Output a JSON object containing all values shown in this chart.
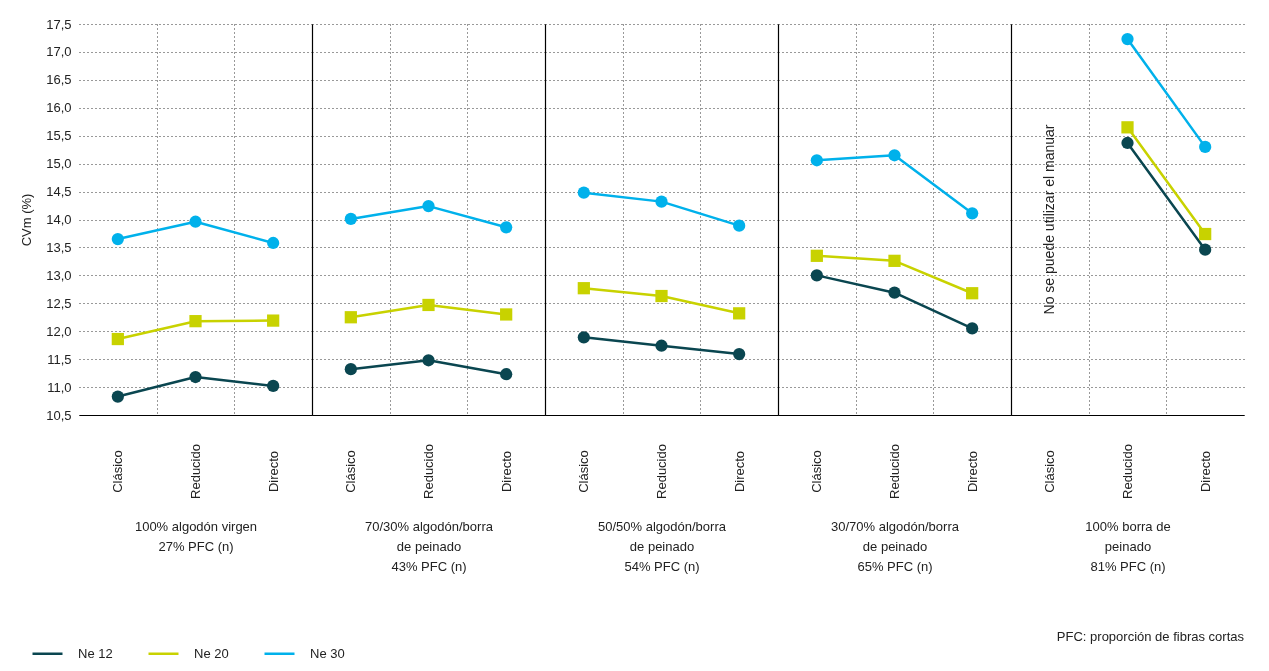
{
  "chart_data": [
    {
      "type": "line",
      "ylabel": "CVm (%)",
      "xlabel": "100% algodón virgen\n27% PFC (n)",
      "categories": [
        "Clásico",
        "Reducido",
        "Directo"
      ],
      "ylim": [
        10.5,
        17.5
      ],
      "yticks": [
        {
          "value": 10.5,
          "label": "10,5"
        },
        {
          "value": 11,
          "label": "11,0"
        },
        {
          "value": 11.5,
          "label": "11,5"
        },
        {
          "value": 12,
          "label": "12,0"
        },
        {
          "value": 12.5,
          "label": "12,5"
        },
        {
          "value": 13,
          "label": "13,0"
        },
        {
          "value": 13.5,
          "label": "13,5"
        },
        {
          "value": 14,
          "label": "14,0"
        },
        {
          "value": 14.5,
          "label": "14,5"
        },
        {
          "value": 15,
          "label": "15,0"
        },
        {
          "value": 15.5,
          "label": "15,5"
        },
        {
          "value": 16,
          "label": "16,0"
        },
        {
          "value": 16.5,
          "label": "16,5"
        },
        {
          "value": 17,
          "label": "17,0"
        },
        {
          "value": 17.5,
          "label": "17,5"
        }
      ],
      "grid": true,
      "legend": "bottom left",
      "series": [
        {
          "name": "Ne 12",
          "color": "#0a4650",
          "marker": "circle",
          "values": [
            10.83,
            11.18,
            11.02
          ]
        },
        {
          "name": "Ne 20",
          "color": "#c8d200",
          "marker": "square",
          "values": [
            11.86,
            12.18,
            12.19
          ]
        },
        {
          "name": "Ne 30",
          "color": "#00b1eb",
          "marker": "circle",
          "values": [
            13.65,
            13.96,
            13.58
          ]
        }
      ]
    },
    {
      "type": "line",
      "xlabel": "70/30% algodón/borra\nde peinado\n43% PFC (n)",
      "categories": [
        "Clásico",
        "Reducido",
        "Directo"
      ],
      "ylim": [
        10.5,
        17.5
      ],
      "tick_labels": "x",
      "grid": true,
      "series": [
        {
          "color": "#0a4650",
          "marker": "circle",
          "values": [
            11.32,
            11.48,
            11.23
          ]
        },
        {
          "color": "#c8d200",
          "marker": "square",
          "values": [
            12.25,
            12.47,
            12.3
          ]
        },
        {
          "color": "#00b1eb",
          "marker": "circle",
          "values": [
            14.01,
            14.24,
            13.86
          ]
        }
      ]
    },
    {
      "type": "line",
      "xlabel": "50/50% algodón/borra\nde peinado\n54% PFC (n)",
      "categories": [
        "Clásico",
        "Reducido",
        "Directo"
      ],
      "ylim": [
        10.5,
        17.5
      ],
      "tick_labels": "x",
      "grid": true,
      "series": [
        {
          "color": "#0a4650",
          "marker": "circle",
          "values": [
            11.89,
            11.74,
            11.59
          ]
        },
        {
          "color": "#c8d200",
          "marker": "square",
          "values": [
            12.77,
            12.63,
            12.32
          ]
        },
        {
          "color": "#00b1eb",
          "marker": "circle",
          "values": [
            14.48,
            14.32,
            13.89
          ]
        }
      ]
    },
    {
      "type": "line",
      "xlabel": "30/70% algodón/borra\nde peinado\n65% PFC (n)",
      "categories": [
        "Clásico",
        "Reducido",
        "Directo"
      ],
      "ylim": [
        10.5,
        17.5
      ],
      "tick_labels": "x",
      "grid": true,
      "series": [
        {
          "color": "#0a4650",
          "marker": "circle",
          "values": [
            13.0,
            12.69,
            12.05
          ]
        },
        {
          "color": "#c8d200",
          "marker": "square",
          "values": [
            13.35,
            13.26,
            12.68
          ]
        },
        {
          "color": "#00b1eb",
          "marker": "circle",
          "values": [
            15.06,
            15.15,
            14.11
          ]
        }
      ]
    },
    {
      "type": "line",
      "xlabel": "100% borra de\npeinado\n81% PFC (n)",
      "categories": [
        "Clásico",
        "Reducido",
        "Directo"
      ],
      "ylim": [
        10.5,
        17.5
      ],
      "tick_labels": "x",
      "grid": true,
      "annotations": [
        "No se puede utilizar el manuar",
        "PFC: proporción de fibras cortas"
      ],
      "series": [
        {
          "color": "#0a4650",
          "marker": "circle",
          "values": [
            null,
            15.37,
            13.46
          ]
        },
        {
          "color": "#c8d200",
          "marker": "square",
          "values": [
            null,
            15.65,
            13.74
          ]
        },
        {
          "color": "#00b1eb",
          "marker": "circle",
          "values": [
            null,
            17.23,
            15.3
          ]
        }
      ]
    }
  ]
}
